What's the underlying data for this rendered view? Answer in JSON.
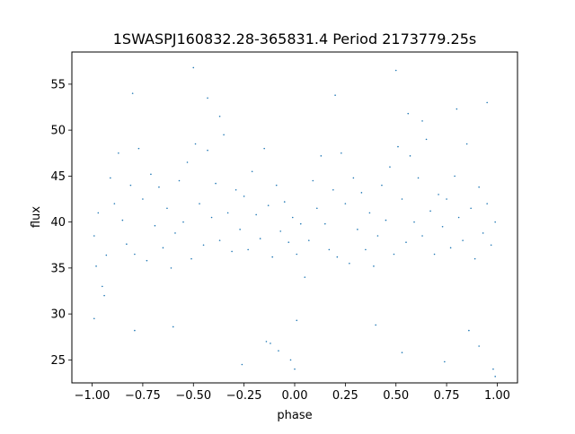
{
  "chart_data": {
    "type": "scatter",
    "title": "1SWASPJ160832.28-365831.4 Period 2173779.25s",
    "xlabel": "phase",
    "ylabel": "flux",
    "xlim": [
      -1.1,
      1.1
    ],
    "ylim": [
      22.5,
      58.5
    ],
    "xticks": [
      -1.0,
      -0.75,
      -0.5,
      -0.25,
      0.0,
      0.25,
      0.5,
      0.75,
      1.0
    ],
    "xtick_labels": [
      "−1.00",
      "−0.75",
      "−0.50",
      "−0.25",
      "0.00",
      "0.25",
      "0.50",
      "0.75",
      "1.00"
    ],
    "yticks": [
      25,
      30,
      35,
      40,
      45,
      50,
      55
    ],
    "ytick_labels": [
      "25",
      "30",
      "35",
      "40",
      "45",
      "50",
      "55"
    ],
    "grid": false,
    "legend": "none",
    "marker_color": "#1f77b4",
    "series": [
      {
        "points": [
          [
            -0.99,
            38.5
          ],
          [
            -0.98,
            35.2
          ],
          [
            -0.97,
            41.0
          ],
          [
            -0.95,
            33.0
          ],
          [
            -0.93,
            36.4
          ],
          [
            -0.91,
            44.8
          ],
          [
            -0.89,
            42.0
          ],
          [
            -0.87,
            47.5
          ],
          [
            -0.85,
            40.2
          ],
          [
            -0.83,
            37.6
          ],
          [
            -0.81,
            44.0
          ],
          [
            -0.79,
            36.5
          ],
          [
            -0.77,
            48.0
          ],
          [
            -0.75,
            42.5
          ],
          [
            -0.73,
            35.8
          ],
          [
            -0.71,
            45.2
          ],
          [
            -0.69,
            39.6
          ],
          [
            -0.67,
            43.8
          ],
          [
            -0.65,
            37.2
          ],
          [
            -0.63,
            41.5
          ],
          [
            -0.61,
            35.0
          ],
          [
            -0.59,
            38.8
          ],
          [
            -0.57,
            44.5
          ],
          [
            -0.55,
            40.0
          ],
          [
            -0.53,
            46.5
          ],
          [
            -0.51,
            36.0
          ],
          [
            -0.49,
            48.5
          ],
          [
            -0.47,
            42.0
          ],
          [
            -0.45,
            37.5
          ],
          [
            -0.43,
            47.8
          ],
          [
            -0.41,
            40.5
          ],
          [
            -0.39,
            44.2
          ],
          [
            -0.37,
            38.0
          ],
          [
            -0.35,
            49.5
          ],
          [
            -0.33,
            41.0
          ],
          [
            -0.31,
            36.8
          ],
          [
            -0.29,
            43.5
          ],
          [
            -0.27,
            39.2
          ],
          [
            -0.25,
            42.8
          ],
          [
            -0.23,
            37.0
          ],
          [
            -0.21,
            45.5
          ],
          [
            -0.19,
            40.8
          ],
          [
            -0.17,
            38.2
          ],
          [
            -0.15,
            48.0
          ],
          [
            -0.13,
            41.8
          ],
          [
            -0.11,
            36.2
          ],
          [
            -0.09,
            44.0
          ],
          [
            -0.07,
            39.0
          ],
          [
            -0.05,
            42.2
          ],
          [
            -0.03,
            37.8
          ],
          [
            -0.01,
            40.5
          ],
          [
            0.01,
            36.5
          ],
          [
            0.03,
            39.8
          ],
          [
            0.05,
            34.0
          ],
          [
            0.07,
            38.0
          ],
          [
            0.09,
            44.5
          ],
          [
            0.11,
            41.5
          ],
          [
            0.13,
            47.2
          ],
          [
            0.15,
            39.8
          ],
          [
            0.17,
            37.0
          ],
          [
            0.19,
            43.5
          ],
          [
            0.21,
            36.2
          ],
          [
            0.23,
            47.5
          ],
          [
            0.25,
            42.0
          ],
          [
            0.27,
            35.5
          ],
          [
            0.29,
            44.8
          ],
          [
            0.31,
            39.2
          ],
          [
            0.33,
            43.2
          ],
          [
            0.35,
            37.0
          ],
          [
            0.37,
            41.0
          ],
          [
            0.39,
            35.2
          ],
          [
            0.41,
            38.5
          ],
          [
            0.43,
            44.0
          ],
          [
            0.45,
            40.2
          ],
          [
            0.47,
            46.0
          ],
          [
            0.49,
            36.5
          ],
          [
            0.51,
            48.2
          ],
          [
            0.53,
            42.5
          ],
          [
            0.55,
            37.8
          ],
          [
            0.57,
            47.2
          ],
          [
            0.59,
            40.0
          ],
          [
            0.61,
            44.8
          ],
          [
            0.63,
            38.5
          ],
          [
            0.65,
            49.0
          ],
          [
            0.67,
            41.2
          ],
          [
            0.69,
            36.5
          ],
          [
            0.71,
            43.0
          ],
          [
            0.73,
            39.5
          ],
          [
            0.75,
            42.5
          ],
          [
            0.77,
            37.2
          ],
          [
            0.79,
            45.0
          ],
          [
            0.81,
            40.5
          ],
          [
            0.83,
            38.0
          ],
          [
            0.85,
            48.5
          ],
          [
            0.87,
            41.5
          ],
          [
            0.89,
            36.0
          ],
          [
            0.91,
            43.8
          ],
          [
            0.93,
            38.8
          ],
          [
            0.95,
            42.0
          ],
          [
            0.97,
            37.5
          ],
          [
            0.99,
            40.0
          ],
          [
            -0.99,
            29.5
          ],
          [
            -0.94,
            32.0
          ],
          [
            -0.79,
            28.2
          ],
          [
            -0.6,
            28.6
          ],
          [
            -0.43,
            53.5
          ],
          [
            -0.37,
            51.5
          ],
          [
            -0.26,
            24.5
          ],
          [
            -0.14,
            27.0
          ],
          [
            -0.12,
            26.8
          ],
          [
            -0.08,
            26.0
          ],
          [
            -0.02,
            25.0
          ],
          [
            0.0,
            24.0
          ],
          [
            0.01,
            29.3
          ],
          [
            0.2,
            53.8
          ],
          [
            0.4,
            28.8
          ],
          [
            0.56,
            51.8
          ],
          [
            0.63,
            51.0
          ],
          [
            0.74,
            24.8
          ],
          [
            0.86,
            28.2
          ],
          [
            0.91,
            26.5
          ],
          [
            0.98,
            24.0
          ],
          [
            0.95,
            53.0
          ],
          [
            0.8,
            52.3
          ],
          [
            0.53,
            25.8
          ],
          [
            0.5,
            56.5
          ],
          [
            -0.5,
            56.8
          ],
          [
            -0.8,
            54.0
          ],
          [
            0.99,
            23.2
          ]
        ]
      }
    ]
  }
}
